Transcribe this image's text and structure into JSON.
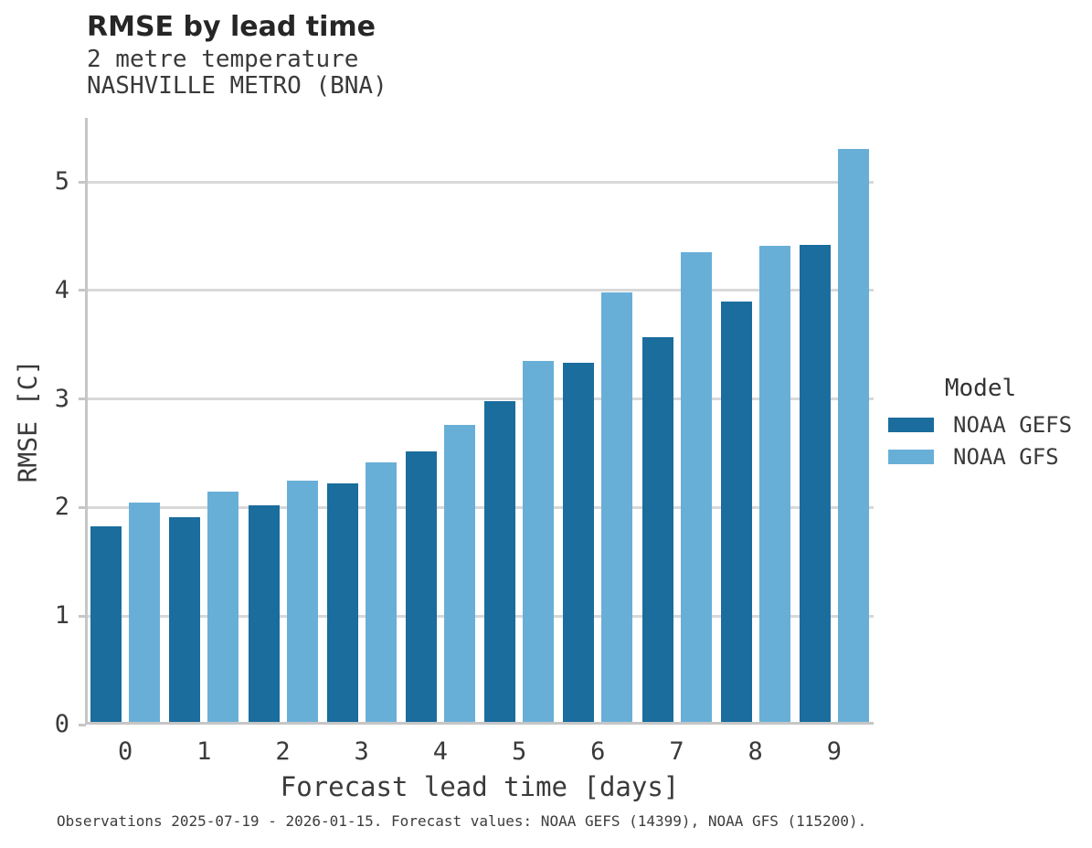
{
  "header": {
    "title": "RMSE by lead time",
    "subtitle_line1": "2 metre temperature",
    "subtitle_line2": "NASHVILLE METRO (BNA)"
  },
  "chart_data": {
    "type": "bar",
    "title": "RMSE by lead time",
    "subtitle": "2 metre temperature — NASHVILLE METRO (BNA)",
    "categories": [
      "0",
      "1",
      "2",
      "3",
      "4",
      "5",
      "6",
      "7",
      "8",
      "9"
    ],
    "series": [
      {
        "name": "NOAA GEFS",
        "color": "#1a6d9d",
        "values": [
          1.83,
          1.91,
          2.02,
          2.22,
          2.52,
          2.98,
          3.33,
          3.57,
          3.9,
          4.42
        ]
      },
      {
        "name": "NOAA GFS",
        "color": "#68afd8",
        "values": [
          2.05,
          2.15,
          2.25,
          2.42,
          2.76,
          3.35,
          3.98,
          4.35,
          4.41,
          5.3
        ]
      }
    ],
    "xlabel": "Forecast lead time [days]",
    "ylabel": "RMSE [C]",
    "ylim": [
      0,
      5.59
    ],
    "yticks": [
      0,
      1,
      2,
      3,
      4,
      5
    ],
    "grid": true,
    "legend_title": "Model",
    "legend_position": "right"
  },
  "footnote": "Observations 2025-07-19 - 2026-01-15. Forecast values: NOAA GEFS (14399), NOAA GFS (115200)."
}
